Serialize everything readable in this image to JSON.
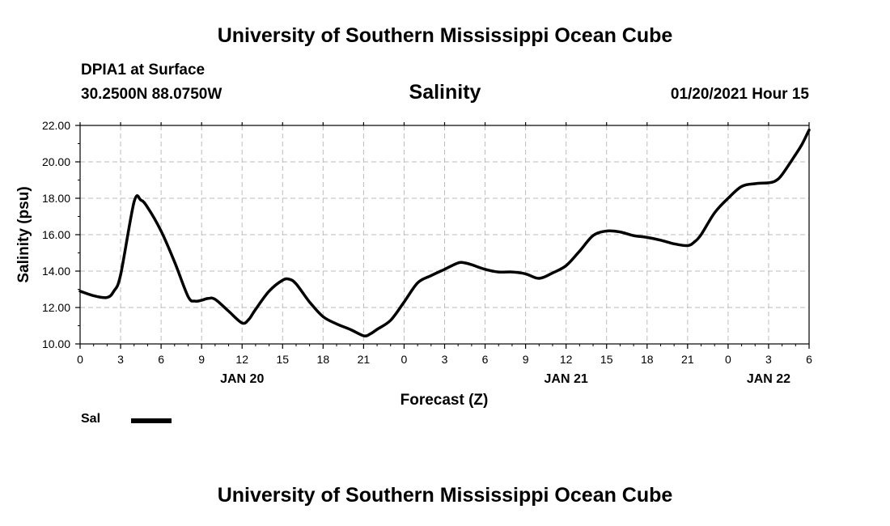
{
  "header": {
    "title": "University of Southern Mississippi Ocean Cube",
    "station": "DPIA1 at Surface",
    "coordinates": "30.2500N 88.0750W",
    "chart_title": "Salinity",
    "datetime": "01/20/2021 Hour 15"
  },
  "footer": {
    "title": "University of Southern Mississippi Ocean Cube"
  },
  "legend": {
    "label": "Sal"
  },
  "chart_data": {
    "type": "line",
    "title": "Salinity",
    "xlabel": "Forecast (Z)",
    "ylabel": "Salinity (psu)",
    "ylim": [
      10,
      22
    ],
    "xlim": [
      0,
      54
    ],
    "y_ticks": [
      "10.00",
      "12.00",
      "14.00",
      "16.00",
      "18.00",
      "20.00",
      "22.00"
    ],
    "x_tick_labels": [
      "0",
      "3",
      "6",
      "9",
      "12",
      "15",
      "18",
      "21",
      "0",
      "3",
      "6",
      "9",
      "12",
      "15",
      "18",
      "21",
      "0",
      "3",
      "6"
    ],
    "date_labels": [
      {
        "label": "JAN 20",
        "hour": 12
      },
      {
        "label": "JAN 21",
        "hour": 36
      },
      {
        "label": "JAN 22",
        "hour": 51
      }
    ],
    "grid": true,
    "series": [
      {
        "name": "Sal",
        "color": "#000000",
        "x": [
          0,
          1,
          2,
          2.5,
          3,
          4,
          4.5,
          5,
          6,
          7,
          8,
          8.5,
          9,
          9.5,
          10,
          11,
          12,
          12.5,
          13,
          14,
          15,
          15.5,
          16,
          17,
          18,
          19,
          20,
          21,
          21.5,
          22,
          23,
          24,
          25,
          26,
          27,
          28,
          28.5,
          29,
          30,
          31,
          32,
          33,
          34,
          35,
          36,
          37,
          38,
          39,
          40,
          41,
          42,
          43,
          44,
          45,
          45.5,
          46,
          47,
          48,
          49,
          50,
          51,
          51.5,
          52,
          53,
          53.5,
          54
        ],
        "values": [
          12.9,
          12.65,
          12.55,
          12.9,
          13.8,
          17.8,
          17.9,
          17.5,
          16.2,
          14.5,
          12.6,
          12.35,
          12.4,
          12.5,
          12.45,
          11.8,
          11.15,
          11.35,
          11.9,
          12.9,
          13.5,
          13.55,
          13.3,
          12.3,
          11.5,
          11.1,
          10.8,
          10.45,
          10.55,
          10.8,
          11.3,
          12.3,
          13.35,
          13.75,
          14.1,
          14.45,
          14.45,
          14.35,
          14.1,
          13.95,
          13.95,
          13.85,
          13.6,
          13.9,
          14.3,
          15.1,
          15.95,
          16.2,
          16.15,
          15.95,
          15.85,
          15.7,
          15.5,
          15.4,
          15.6,
          16.0,
          17.2,
          18.0,
          18.65,
          18.8,
          18.85,
          18.95,
          19.3,
          20.4,
          21.0,
          21.75
        ]
      }
    ]
  }
}
